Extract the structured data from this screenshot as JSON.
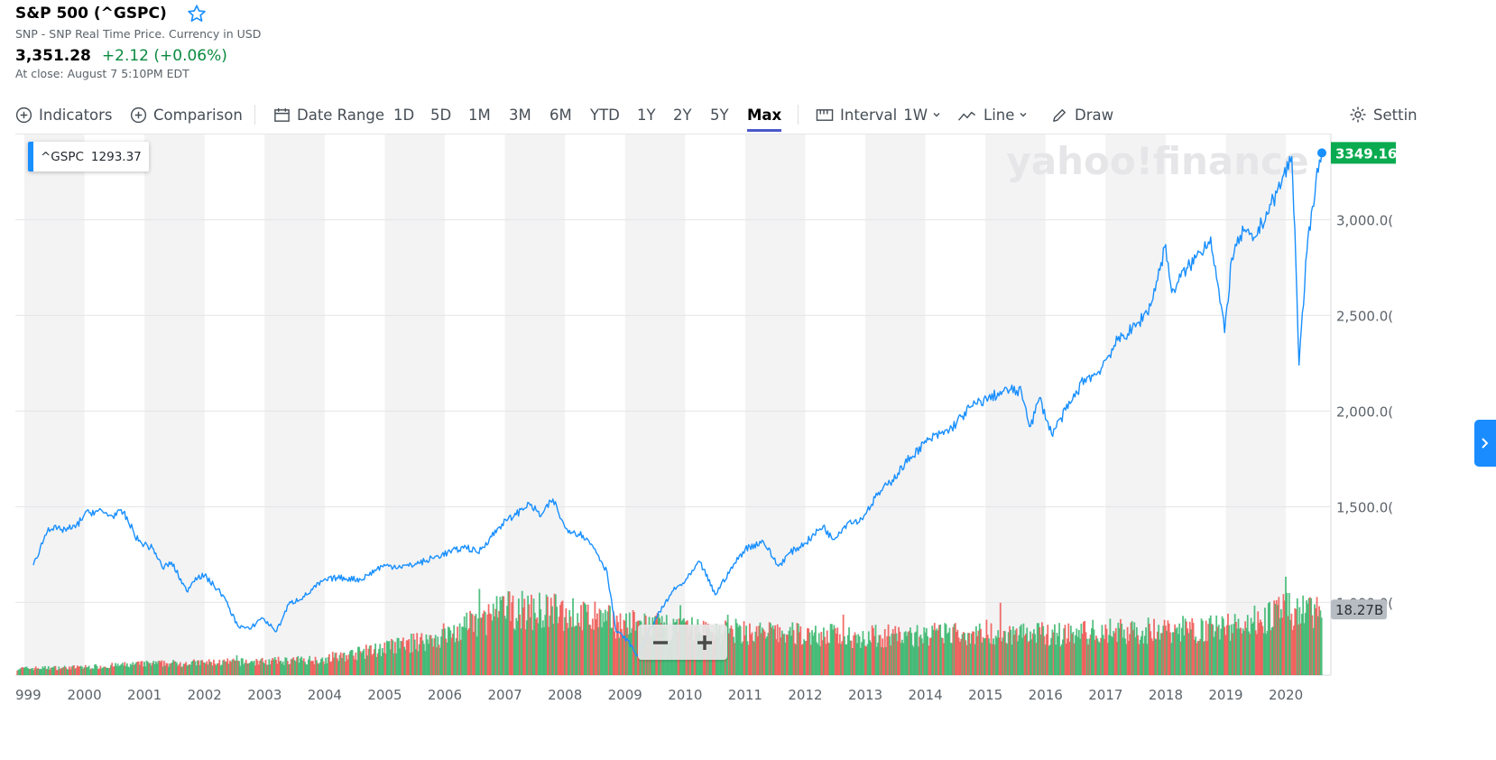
{
  "header": {
    "title": "S&P 500 (^GSPC)",
    "subtitle": "SNP - SNP Real Time Price. Currency in USD",
    "price": "3,351.28",
    "change": "+2.12 (+0.06%)",
    "close_label": "At close: August 7 5:10PM EDT"
  },
  "toolbar": {
    "indicators": "Indicators",
    "comparison": "Comparison",
    "date_range": "Date Range",
    "ranges": [
      "1D",
      "5D",
      "1M",
      "3M",
      "6M",
      "YTD",
      "1Y",
      "2Y",
      "5Y",
      "Max"
    ],
    "active_range": "Max",
    "interval_label": "Interval",
    "interval_value": "1W",
    "chart_type": "Line",
    "draw": "Draw",
    "settings": "Settin"
  },
  "legend": {
    "symbol": "^GSPC",
    "value": "1293.37"
  },
  "watermark": "yahoo!finance",
  "colors": {
    "line": "#188fff",
    "up_volume": "#35b56b",
    "down_volume": "#ef5350",
    "current_tag": "#0aab50",
    "volume_tag": "#b7bcc2"
  },
  "chart_data": {
    "type": "line",
    "series": [
      {
        "name": "^GSPC",
        "x": [
          1999.15,
          1999.4,
          1999.6,
          1999.85,
          2000.0,
          2000.2,
          2000.45,
          2000.65,
          2000.9,
          2001.15,
          2001.3,
          2001.45,
          2001.7,
          2001.85,
          2002.0,
          2002.3,
          2002.55,
          2002.75,
          2002.95,
          2003.2,
          2003.4,
          2003.7,
          2003.95,
          2004.2,
          2004.6,
          2004.95,
          2005.4,
          2005.7,
          2005.95,
          2006.35,
          2006.55,
          2006.95,
          2007.15,
          2007.4,
          2007.6,
          2007.8,
          2008.0,
          2008.3,
          2008.5,
          2008.7,
          2008.85,
          2009.05,
          2009.2,
          2009.5,
          2009.8,
          2010.0,
          2010.25,
          2010.5,
          2010.75,
          2011.0,
          2011.3,
          2011.55,
          2011.75,
          2012.0,
          2012.3,
          2012.45,
          2012.75,
          2012.9,
          2013.2,
          2013.45,
          2013.75,
          2014.05,
          2014.4,
          2014.75,
          2015.05,
          2015.4,
          2015.6,
          2015.75,
          2015.9,
          2016.1,
          2016.45,
          2016.65,
          2016.85,
          2017.2,
          2017.5,
          2017.75,
          2018.0,
          2018.1,
          2018.25,
          2018.5,
          2018.75,
          2018.98,
          2019.1,
          2019.3,
          2019.45,
          2019.6,
          2019.85,
          2020.1,
          2020.15,
          2020.22,
          2020.35,
          2020.5,
          2020.6
        ],
        "values": [
          1195,
          1390,
          1380,
          1390,
          1460,
          1480,
          1455,
          1470,
          1320,
          1280,
          1180,
          1210,
          1060,
          1130,
          1140,
          1040,
          880,
          860,
          920,
          850,
          990,
          1040,
          1110,
          1130,
          1120,
          1190,
          1190,
          1220,
          1250,
          1290,
          1260,
          1410,
          1450,
          1520,
          1450,
          1540,
          1390,
          1350,
          1280,
          1160,
          850,
          800,
          720,
          910,
          1060,
          1110,
          1210,
          1040,
          1170,
          1280,
          1320,
          1190,
          1260,
          1310,
          1400,
          1330,
          1430,
          1420,
          1560,
          1640,
          1760,
          1850,
          1900,
          2020,
          2070,
          2110,
          2100,
          1920,
          2070,
          1880,
          2060,
          2170,
          2190,
          2370,
          2440,
          2550,
          2870,
          2620,
          2700,
          2800,
          2910,
          2410,
          2800,
          2940,
          2890,
          2980,
          3140,
          3330,
          2950,
          2240,
          2830,
          3200,
          3349.16
        ]
      }
    ],
    "xlim": [
      1998.85,
      2020.75
    ],
    "ylim": [
      620,
      3450
    ],
    "x_tick_labels": [
      "999",
      "2000",
      "2001",
      "2002",
      "2003",
      "2004",
      "2005",
      "2006",
      "2007",
      "2008",
      "2009",
      "2010",
      "2011",
      "2012",
      "2013",
      "2014",
      "2015",
      "2016",
      "2017",
      "2018",
      "2019",
      "2020"
    ],
    "y_tick_labels": [
      "1,000.0(",
      "1,500.0(",
      "2,000.0(",
      "2,500.0(",
      "3,000.0("
    ],
    "y_ticks": [
      1000,
      1500,
      2000,
      2500,
      3000
    ],
    "current_value_label": "3349.16",
    "volume_label": "18.27B",
    "volume_profile": [
      0.06,
      0.06,
      0.07,
      0.1,
      0.11,
      0.12,
      0.14,
      0.24,
      0.34,
      0.58,
      0.55,
      0.45,
      0.4,
      0.38,
      0.36,
      0.34,
      0.35,
      0.38,
      0.36,
      0.38,
      0.4,
      0.42,
      0.56
    ],
    "grid": true
  }
}
